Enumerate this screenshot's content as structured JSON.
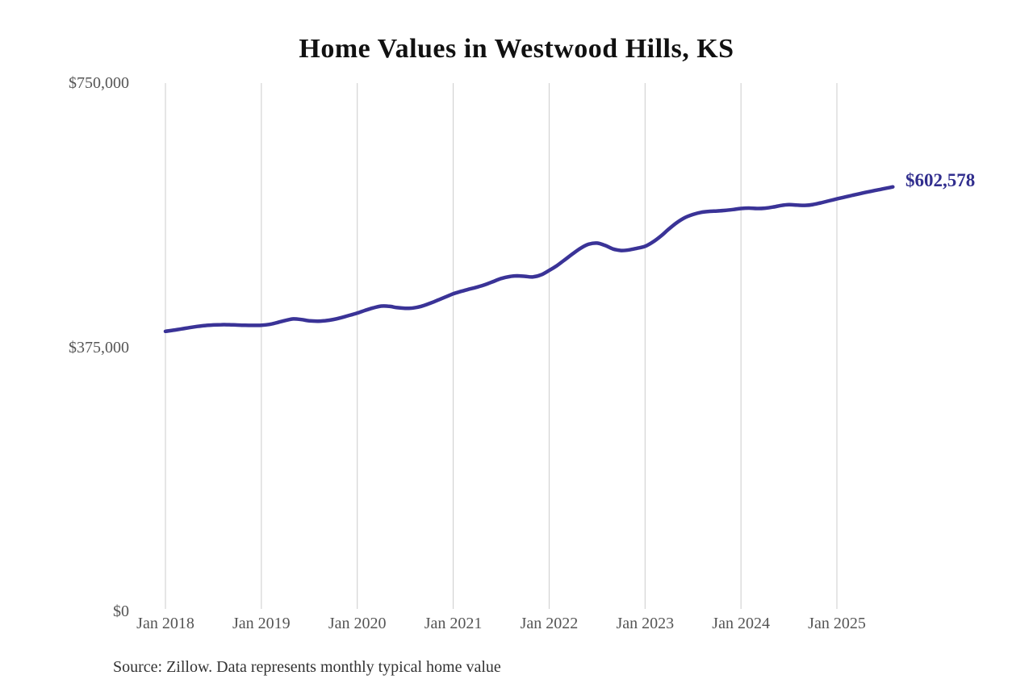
{
  "title": "Home Values in Westwood Hills, KS",
  "source_note": "Source: Zillow. Data represents monthly typical home value",
  "end_label": "$602,578",
  "colors": {
    "background": "#ffffff",
    "line": "#3a3397",
    "end_label_text": "#312e8e",
    "gridline": "#cccccc",
    "axis_text": "#555555",
    "title_text": "#111111",
    "source_text": "#333333"
  },
  "chart_data": {
    "type": "line",
    "title": "Home Values in Westwood Hills, KS",
    "xlabel": "",
    "ylabel": "",
    "grid": "vertical-only",
    "legend": "none",
    "ylim": [
      0,
      750000
    ],
    "y_ticks": [
      {
        "label": "$0",
        "value": 0
      },
      {
        "label": "$375,000",
        "value": 375000
      },
      {
        "label": "$750,000",
        "value": 750000
      }
    ],
    "x_start": "2018-01",
    "x_interval": "monthly",
    "x_end": "2025-08",
    "x_tick_labels": [
      "Jan 2018",
      "Jan 2019",
      "Jan 2020",
      "Jan 2021",
      "Jan 2022",
      "Jan 2023",
      "Jan 2024",
      "Jan 2025"
    ],
    "x_tick_month_indices": [
      0,
      12,
      24,
      36,
      48,
      60,
      72,
      84
    ],
    "series": [
      {
        "name": "Monthly typical home value",
        "final_value": 602578,
        "final_value_label": "$602,578",
        "values": [
          397500,
          399200,
          401000,
          402800,
          404500,
          405800,
          406600,
          407000,
          406900,
          406500,
          406100,
          406000,
          406300,
          407400,
          410000,
          413000,
          415200,
          414300,
          412500,
          412000,
          412700,
          414400,
          417000,
          420200,
          423500,
          427400,
          430900,
          433400,
          433100,
          431200,
          430300,
          430800,
          433000,
          437000,
          441500,
          446200,
          450900,
          454300,
          457500,
          460400,
          463800,
          468200,
          472500,
          475200,
          476300,
          475600,
          474800,
          477800,
          484000,
          491000,
          499500,
          508000,
          516000,
          521500,
          522800,
          519500,
          514500,
          512300,
          513200,
          515500,
          518200,
          524500,
          533000,
          543000,
          552000,
          559000,
          563500,
          566500,
          567800,
          568400,
          569200,
          570500,
          571900,
          572500,
          571900,
          572400,
          574000,
          576200,
          577300,
          576800,
          576400,
          577500,
          580000,
          582800,
          585600,
          588200,
          590800,
          593400,
          595800,
          598000,
          600300,
          602578
        ]
      }
    ]
  }
}
